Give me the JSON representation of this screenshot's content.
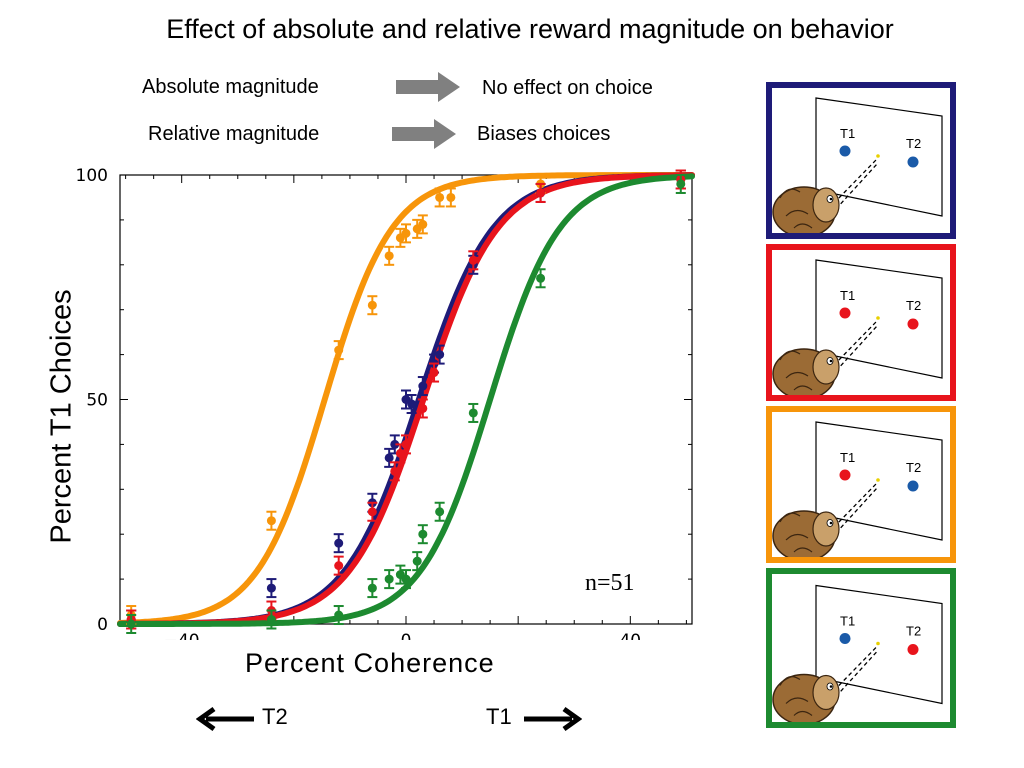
{
  "title": "Effect of absolute and relative reward magnitude on behavior",
  "summary": {
    "rows": [
      {
        "left": "Absolute magnitude",
        "right": "No effect on choice"
      },
      {
        "left": "Relative magnitude",
        "right": "Biases choices"
      }
    ]
  },
  "annotation": "n=51",
  "direction": {
    "left": "T2",
    "right": "T1"
  },
  "panels": [
    {
      "border": "#1e1b78",
      "t1_label": "T1",
      "t2_label": "T2",
      "t1_color": "#1a5aa8",
      "t2_color": "#1a5aa8"
    },
    {
      "border": "#e8141c",
      "t1_label": "T1",
      "t2_label": "T2",
      "t1_color": "#e8141c",
      "t2_color": "#e8141c"
    },
    {
      "border": "#f7950a",
      "t1_label": "T1",
      "t2_label": "T2",
      "t1_color": "#e8141c",
      "t2_color": "#1a5aa8"
    },
    {
      "border": "#1d8a30",
      "t1_label": "T1",
      "t2_label": "T2",
      "t1_color": "#1a5aa8",
      "t2_color": "#e8141c"
    }
  ],
  "chart_data": {
    "type": "line",
    "xlabel": "Percent Coherence",
    "ylabel": "Percent T1 Choices",
    "xlim": [
      -51,
      51
    ],
    "ylim": [
      0,
      100
    ],
    "xticks": [
      -40,
      0,
      40
    ],
    "xtick_labels": [
      "−40",
      "0",
      "40"
    ],
    "yticks": [
      0,
      50,
      100
    ],
    "ytick_labels": [
      "0",
      "50",
      "100"
    ],
    "grid": false,
    "series": [
      {
        "color": "#f7950a",
        "fit": {
          "mu": -14.5,
          "s": 6.0
        },
        "points": [
          [
            -49,
            2
          ],
          [
            -24,
            23
          ],
          [
            -12,
            61
          ],
          [
            -6,
            71
          ],
          [
            -3,
            82
          ],
          [
            -1,
            86
          ],
          [
            0,
            87
          ],
          [
            2,
            88
          ],
          [
            3,
            89
          ],
          [
            6,
            95
          ],
          [
            8,
            95
          ],
          [
            24,
            98
          ],
          [
            49,
            99
          ]
        ]
      },
      {
        "color": "#1e1b78",
        "fit": {
          "mu": 2.3,
          "s": 6.6
        },
        "points": [
          [
            -49,
            1
          ],
          [
            -24,
            8
          ],
          [
            -12,
            18
          ],
          [
            -6,
            27
          ],
          [
            -3,
            37
          ],
          [
            -2,
            40
          ],
          [
            0,
            50
          ],
          [
            1,
            49
          ],
          [
            3,
            53
          ],
          [
            5,
            58
          ],
          [
            6,
            60
          ],
          [
            12,
            80
          ],
          [
            24,
            96
          ],
          [
            49,
            99
          ]
        ]
      },
      {
        "color": "#e8141c",
        "fit": {
          "mu": 3.1,
          "s": 6.6
        },
        "points": [
          [
            -49,
            1
          ],
          [
            -24,
            3
          ],
          [
            -12,
            13
          ],
          [
            -6,
            25
          ],
          [
            -2,
            34
          ],
          [
            -1,
            38
          ],
          [
            0,
            40
          ],
          [
            3,
            48
          ],
          [
            5,
            56
          ],
          [
            12,
            81
          ],
          [
            24,
            96
          ],
          [
            49,
            99
          ]
        ]
      },
      {
        "color": "#1d8a30",
        "fit": {
          "mu": 15.0,
          "s": 6.2
        },
        "points": [
          [
            -49,
            0
          ],
          [
            -24,
            1
          ],
          [
            -12,
            2
          ],
          [
            -6,
            8
          ],
          [
            -3,
            10
          ],
          [
            -1,
            11
          ],
          [
            0,
            10
          ],
          [
            2,
            14
          ],
          [
            3,
            20
          ],
          [
            6,
            25
          ],
          [
            12,
            47
          ],
          [
            24,
            77
          ],
          [
            49,
            98
          ]
        ]
      }
    ]
  }
}
